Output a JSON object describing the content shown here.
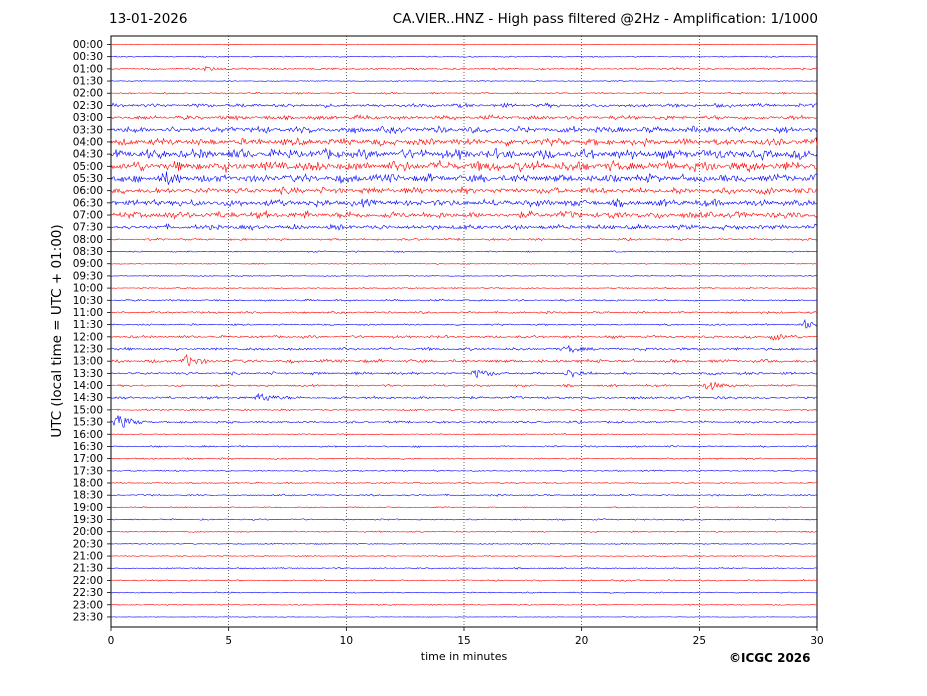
{
  "header": {
    "date": "13-01-2026",
    "title": "CA.VIER..HNZ - High pass filtered @2Hz - Amplification: 1/1000"
  },
  "copyright": "©ICGC 2026",
  "colors": {
    "trace_a": "#0000ff",
    "trace_b": "#ff0000",
    "frame": "#000000",
    "grid": "#000000"
  },
  "chart_data": {
    "type": "line",
    "subtype": "helicorder",
    "title": "CA.VIER..HNZ - High pass filtered @2Hz - Amplification: 1/1000",
    "xlabel": "time in minutes",
    "ylabel": "UTC (local time = UTC + 01:00)",
    "xlim": [
      0,
      30
    ],
    "xticks": [
      0,
      5,
      10,
      15,
      20,
      25,
      30
    ],
    "grid": "vertical dotted lines at 5, 10, 15, 20, 25 min",
    "rows": [
      "00:00",
      "00:30",
      "01:00",
      "01:30",
      "02:00",
      "02:30",
      "03:00",
      "03:30",
      "04:00",
      "04:30",
      "05:00",
      "05:30",
      "06:00",
      "06:30",
      "07:00",
      "07:30",
      "08:00",
      "08:30",
      "09:00",
      "09:30",
      "10:00",
      "10:30",
      "11:00",
      "11:30",
      "12:00",
      "12:30",
      "13:00",
      "13:30",
      "14:00",
      "14:30",
      "15:00",
      "15:30",
      "16:00",
      "16:30",
      "17:00",
      "17:30",
      "18:00",
      "18:30",
      "19:00",
      "19:30",
      "20:00",
      "20:30",
      "21:00",
      "21:30",
      "22:00",
      "22:30",
      "23:00",
      "23:30"
    ],
    "row_colors": [
      "#ff0000",
      "#0000ff"
    ],
    "trace_activity": [
      0,
      0.06,
      0.12,
      0.04,
      0.1,
      0.3,
      0.35,
      0.55,
      0.6,
      0.85,
      0.9,
      0.7,
      0.55,
      0.6,
      0.6,
      0.4,
      0.15,
      0.08,
      0.05,
      0.04,
      0.06,
      0.12,
      0.15,
      0.1,
      0.2,
      0.2,
      0.25,
      0.2,
      0.15,
      0.2,
      0.1,
      0.15,
      0.06,
      0.1,
      0.1,
      0.08,
      0.07,
      0.1,
      0.06,
      0.08,
      0.08,
      0.05,
      0.05,
      0.08,
      0.1,
      0.06,
      0.05,
      0
    ],
    "events": [
      {
        "row": "01:00",
        "minute": 4.1,
        "amplitude": 0.15
      },
      {
        "row": "05:30",
        "minute": 2.3,
        "amplitude": 0.3
      },
      {
        "row": "13:00",
        "minute": 3.2,
        "amplitude": 0.4
      },
      {
        "row": "13:30",
        "minute": 15.5,
        "amplitude": 0.3
      },
      {
        "row": "13:30",
        "minute": 19.5,
        "amplitude": 0.3
      },
      {
        "row": "12:30",
        "minute": 19.5,
        "amplitude": 0.25
      },
      {
        "row": "14:00",
        "minute": 25.4,
        "amplitude": 0.35
      },
      {
        "row": "14:30",
        "minute": 6.4,
        "amplitude": 0.35
      },
      {
        "row": "15:30",
        "minute": 0.3,
        "amplitude": 0.55
      },
      {
        "row": "11:30",
        "minute": 29.5,
        "amplitude": 0.3
      },
      {
        "row": "12:00",
        "minute": 28.2,
        "amplitude": 0.25
      }
    ]
  }
}
